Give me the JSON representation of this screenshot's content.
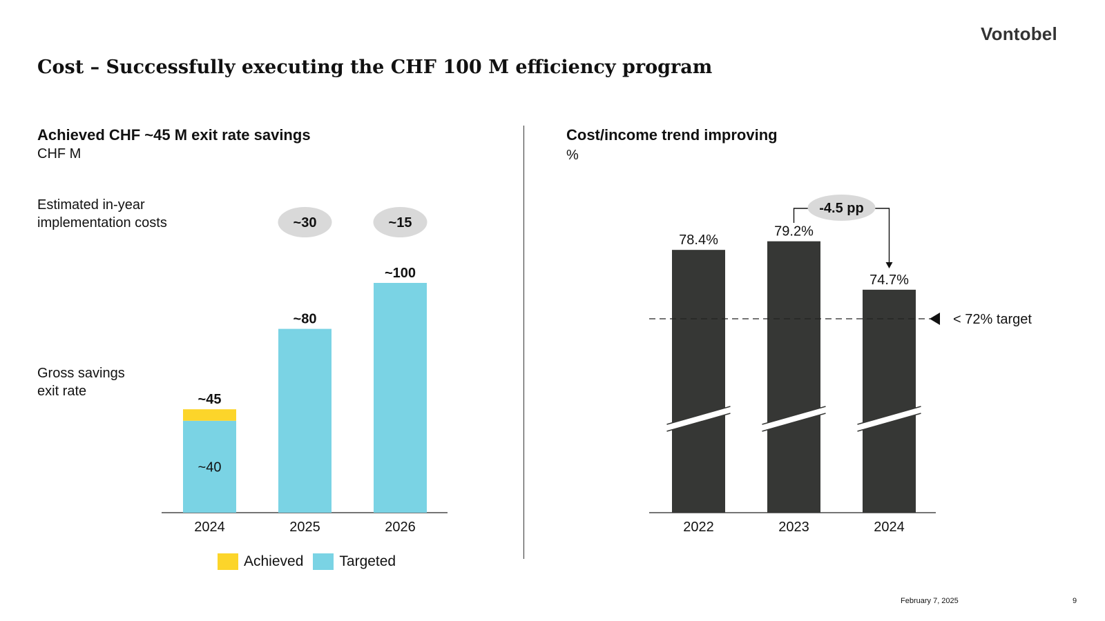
{
  "brand": {
    "logo": "Vontobel"
  },
  "page": {
    "title": "Cost – Successfully executing the CHF 100 M efficiency program",
    "date": "February 7, 2025",
    "number": "9"
  },
  "colors": {
    "achieved": "#fcd52a",
    "targeted": "#7ad3e4",
    "dark_bar": "#363735",
    "bubble": "#d9d9d9"
  },
  "left_panel": {
    "heading": "Achieved CHF ~45 M exit rate savings",
    "unit": "CHF M",
    "row_label_costs": "Estimated in-year implementation costs",
    "row_label_savings": "Gross savings exit rate",
    "implementation_costs": [
      {
        "year": "2025",
        "label": "~30"
      },
      {
        "year": "2026",
        "label": "~15"
      }
    ],
    "legend": {
      "achieved": "Achieved",
      "targeted": "Targeted"
    }
  },
  "right_panel": {
    "heading": "Cost/income trend improving",
    "unit": "%",
    "change_label": "-4.5 pp",
    "target_label": "< 72% target"
  },
  "chart_data": [
    {
      "type": "bar",
      "title": "Achieved CHF ~45 M exit rate savings",
      "ylabel": "CHF M",
      "categories": [
        "2024",
        "2025",
        "2026"
      ],
      "series": [
        {
          "name": "Targeted",
          "values": [
            40,
            80,
            100
          ]
        },
        {
          "name": "Achieved",
          "values": [
            5,
            0,
            0
          ]
        }
      ],
      "total_labels": [
        "~45",
        "~80",
        "~100"
      ],
      "inner_labels": [
        "~40",
        "",
        ""
      ],
      "ylim": [
        0,
        100
      ],
      "stacked": true
    },
    {
      "type": "bar",
      "title": "Cost/income trend improving",
      "ylabel": "%",
      "categories": [
        "2022",
        "2023",
        "2024"
      ],
      "values": [
        78.4,
        79.2,
        74.7
      ],
      "value_labels": [
        "78.4%",
        "79.2%",
        "74.7%"
      ],
      "target": 72,
      "axis_break": true
    }
  ]
}
